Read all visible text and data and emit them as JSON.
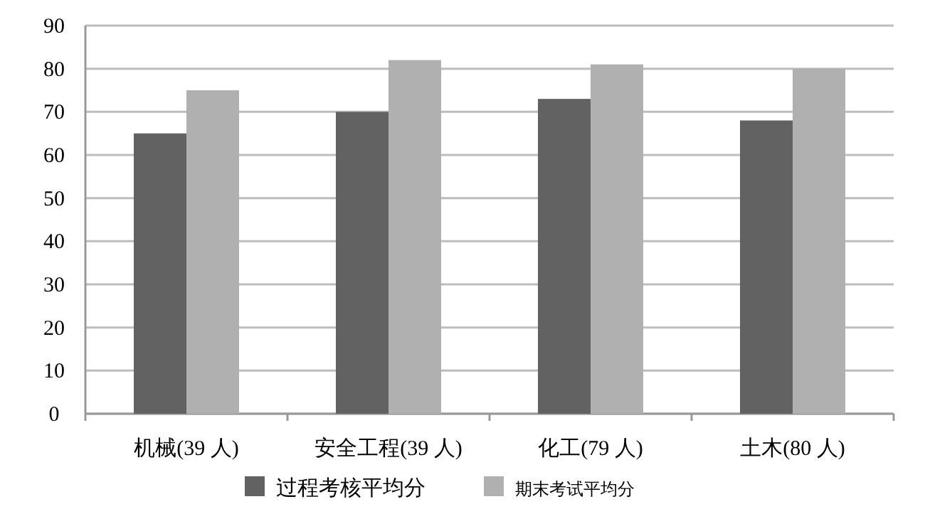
{
  "chart_data": {
    "type": "bar",
    "categories": [
      "机械(39 人)",
      "安全工程(39 人)",
      "化工(79 人)",
      "土木(80 人)"
    ],
    "series": [
      {
        "name": "过程考核平均分",
        "color": "#626262",
        "values": [
          65,
          70,
          73,
          68
        ]
      },
      {
        "name": "期末考试平均分",
        "color": "#b0b0b0",
        "values": [
          75,
          82,
          81,
          80
        ]
      }
    ],
    "ylim": [
      0,
      90
    ],
    "yticks": [
      0,
      10,
      20,
      30,
      40,
      50,
      60,
      70,
      80,
      90
    ],
    "grid": "y",
    "legend": "bottom"
  }
}
